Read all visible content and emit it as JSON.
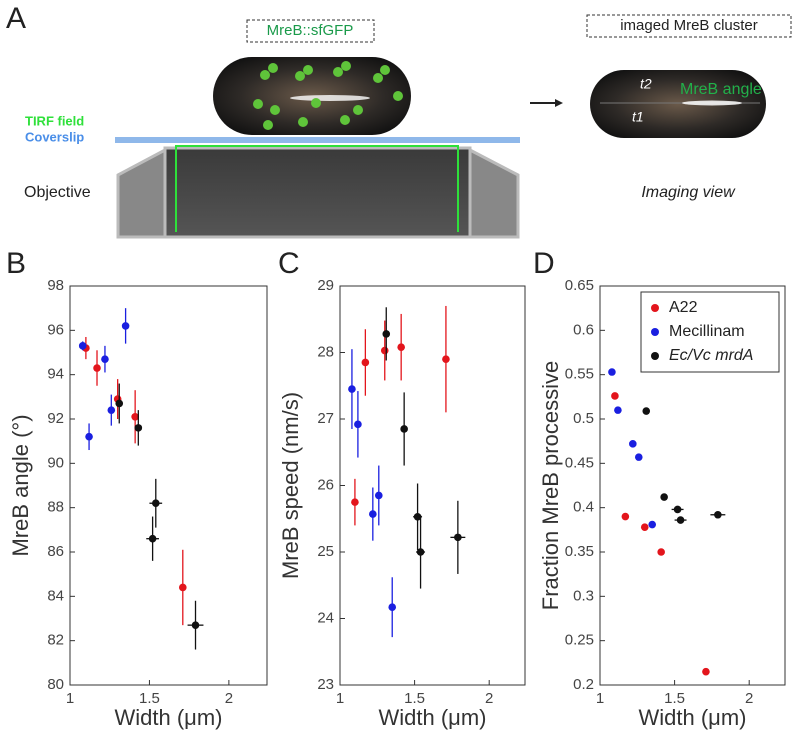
{
  "panel_a": {
    "label": "A",
    "probe": "MreB::sfGFP",
    "cluster": "imaged MreB cluster",
    "tirf": "TIRF field",
    "coverslip": "Coverslip",
    "objective": "Objective",
    "view": "Imaging view",
    "angle": "MreB angle",
    "t2": "t2",
    "t1": "t1"
  },
  "chart_data": [
    {
      "type": "scatter",
      "panel": "B",
      "xlabel": "Width (μm)",
      "ylabel": "MreB angle (°)",
      "xlim": [
        1,
        2.24
      ],
      "xticks": [
        1,
        1.5,
        2
      ],
      "ylim": [
        80,
        98
      ],
      "yticks": [
        80,
        82,
        84,
        86,
        88,
        90,
        92,
        94,
        96,
        98
      ],
      "series": [
        {
          "color": "#e3151c",
          "x": [
            1.1,
            1.17,
            1.3,
            1.41,
            1.71
          ],
          "values": [
            95.2,
            94.3,
            92.9,
            92.1,
            84.4
          ],
          "y_err": [
            0.5,
            0.8,
            0.9,
            1.2,
            1.7
          ]
        },
        {
          "color": "#1a1fe0",
          "x": [
            1.08,
            1.12,
            1.22,
            1.26,
            1.35
          ],
          "values": [
            95.3,
            91.2,
            94.7,
            92.4,
            96.2
          ],
          "y_err": [
            0.2,
            0.6,
            0.6,
            0.7,
            0.8
          ]
        },
        {
          "color": "#111111",
          "x": [
            1.31,
            1.43,
            1.52,
            1.54,
            1.79
          ],
          "values": [
            92.7,
            91.6,
            86.6,
            88.2,
            82.7
          ],
          "y_err": [
            0.9,
            0.8,
            1.0,
            1.1,
            1.1
          ],
          "x_err": [
            0.02,
            0.02,
            0.04,
            0.04,
            0.05
          ]
        }
      ]
    },
    {
      "type": "scatter",
      "panel": "C",
      "xlabel": "Width (μm)",
      "ylabel": "MreB speed (nm/s)",
      "xlim": [
        1,
        2.24
      ],
      "xticks": [
        1,
        1.5,
        2
      ],
      "ylim": [
        23,
        29
      ],
      "yticks": [
        23,
        24,
        25,
        26,
        27,
        28,
        29
      ],
      "series": [
        {
          "color": "#e3151c",
          "x": [
            1.1,
            1.17,
            1.3,
            1.41,
            1.71
          ],
          "values": [
            25.75,
            27.85,
            28.03,
            28.08,
            27.9
          ],
          "y_err": [
            0.35,
            0.5,
            0.45,
            0.5,
            0.8
          ]
        },
        {
          "color": "#1a1fe0",
          "x": [
            1.08,
            1.12,
            1.22,
            1.26,
            1.35
          ],
          "values": [
            27.45,
            26.92,
            25.57,
            25.85,
            24.17
          ],
          "y_err": [
            0.6,
            0.5,
            0.4,
            0.45,
            0.45
          ]
        },
        {
          "color": "#111111",
          "x": [
            1.31,
            1.43,
            1.52,
            1.54,
            1.79
          ],
          "values": [
            28.28,
            26.85,
            25.53,
            25.0,
            25.22
          ],
          "y_err": [
            0.4,
            0.55,
            0.5,
            0.55,
            0.55
          ],
          "x_err": [
            0.02,
            0.02,
            0.03,
            0.03,
            0.05
          ]
        }
      ]
    },
    {
      "type": "scatter",
      "panel": "D",
      "xlabel": "Width (μm)",
      "ylabel": "Fraction MreB processive",
      "xlim": [
        1,
        2.24
      ],
      "xticks": [
        1,
        1.5,
        2
      ],
      "ylim": [
        0.2,
        0.65
      ],
      "yticks": [
        0.2,
        0.25,
        0.3,
        0.35,
        0.4,
        0.45,
        0.5,
        0.55,
        0.6,
        0.65
      ],
      "legend": "upper right",
      "series": [
        {
          "name": "A22",
          "color": "#e3151c",
          "x": [
            1.1,
            1.17,
            1.3,
            1.41,
            1.71
          ],
          "values": [
            0.526,
            0.39,
            0.378,
            0.35,
            0.215
          ]
        },
        {
          "name": "Mecillinam",
          "color": "#1a1fe0",
          "x": [
            1.08,
            1.12,
            1.22,
            1.26,
            1.35
          ],
          "values": [
            0.553,
            0.51,
            0.472,
            0.457,
            0.381
          ]
        },
        {
          "name": "Ec/Vc mrdA",
          "color": "#111111",
          "x": [
            1.31,
            1.43,
            1.52,
            1.54,
            1.79
          ],
          "values": [
            0.509,
            0.412,
            0.398,
            0.386,
            0.392
          ],
          "x_err": [
            0.02,
            0.02,
            0.04,
            0.04,
            0.05
          ]
        }
      ]
    }
  ]
}
